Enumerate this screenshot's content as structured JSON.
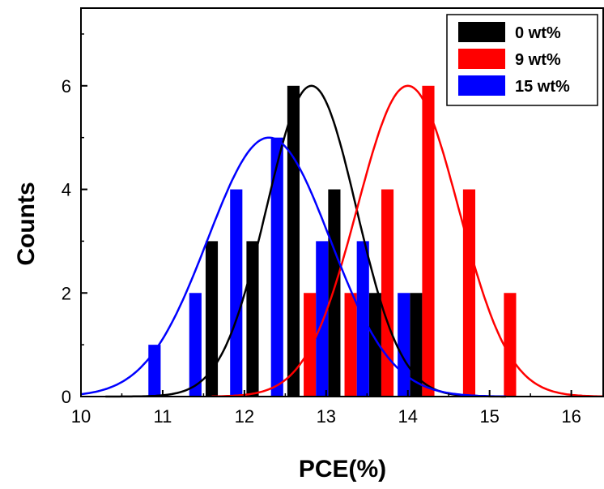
{
  "chart_data": {
    "type": "bar",
    "title": "",
    "xlabel": "PCE(%)",
    "ylabel": "Counts",
    "xlim": [
      10,
      16.4
    ],
    "ylim": [
      0,
      7.5
    ],
    "xticks": [
      "10",
      "11",
      "12",
      "13",
      "14",
      "15",
      "16"
    ],
    "yticks": [
      "0",
      "2",
      "4",
      "6"
    ],
    "bar_width": 0.15,
    "legend_position": "top-right",
    "grid": false,
    "series": [
      {
        "name": "0 wt%",
        "color": "#000000",
        "bars": [
          {
            "x": 11.6,
            "count": 3
          },
          {
            "x": 12.1,
            "count": 3
          },
          {
            "x": 12.6,
            "count": 6
          },
          {
            "x": 13.1,
            "count": 4
          },
          {
            "x": 13.6,
            "count": 2
          },
          {
            "x": 14.1,
            "count": 2
          }
        ],
        "fit": {
          "type": "gaussian",
          "mean": 12.82,
          "sigma": 0.55,
          "peak": 6.0,
          "x_range": [
            10.3,
            15.2
          ]
        }
      },
      {
        "name": "9 wt%",
        "color": "#ff0000",
        "bars": [
          {
            "x": 12.8,
            "count": 2
          },
          {
            "x": 13.3,
            "count": 2
          },
          {
            "x": 13.75,
            "count": 4
          },
          {
            "x": 14.25,
            "count": 6
          },
          {
            "x": 14.75,
            "count": 4
          },
          {
            "x": 15.25,
            "count": 2
          }
        ],
        "fit": {
          "type": "gaussian",
          "mean": 14.0,
          "sigma": 0.62,
          "peak": 6.0,
          "x_range": [
            11.6,
            16.4
          ]
        }
      },
      {
        "name": "15 wt%",
        "color": "#0000ff",
        "bars": [
          {
            "x": 10.9,
            "count": 1
          },
          {
            "x": 11.4,
            "count": 2
          },
          {
            "x": 11.9,
            "count": 4
          },
          {
            "x": 12.4,
            "count": 5
          },
          {
            "x": 12.95,
            "count": 3
          },
          {
            "x": 13.45,
            "count": 3
          },
          {
            "x": 13.95,
            "count": 2
          }
        ],
        "fit": {
          "type": "gaussian",
          "mean": 12.3,
          "sigma": 0.75,
          "peak": 5.0,
          "x_range": [
            10.0,
            15.2
          ]
        }
      }
    ]
  }
}
